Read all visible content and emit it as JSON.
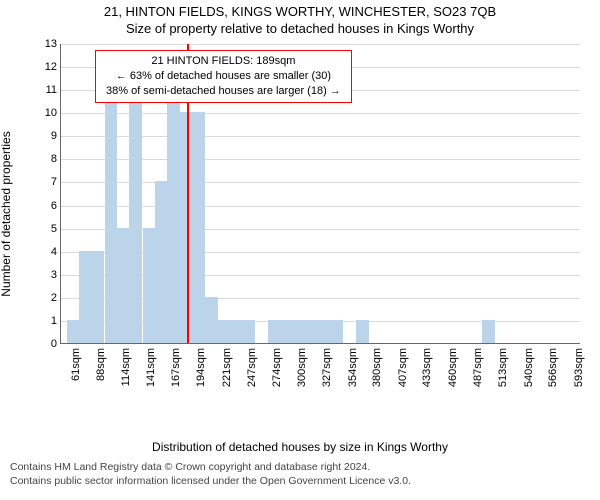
{
  "chart": {
    "type": "histogram",
    "title_line1": "21, HINTON FIELDS, KINGS WORTHY, WINCHESTER, SO23 7QB",
    "title_line2": "Size of property relative to detached houses in Kings Worthy",
    "ylabel": "Number of detached properties",
    "xlabel": "Distribution of detached houses by size in Kings Worthy",
    "ylim": [
      0,
      13
    ],
    "ytick_step": 1,
    "x_min": 55,
    "x_max": 605,
    "x_tick_labels": [
      "61sqm",
      "88sqm",
      "114sqm",
      "141sqm",
      "167sqm",
      "194sqm",
      "221sqm",
      "247sqm",
      "274sqm",
      "300sqm",
      "327sqm",
      "354sqm",
      "380sqm",
      "407sqm",
      "433sqm",
      "460sqm",
      "487sqm",
      "513sqm",
      "540sqm",
      "566sqm",
      "593sqm"
    ],
    "x_tick_values": [
      61,
      88,
      114,
      141,
      167,
      194,
      221,
      247,
      274,
      300,
      327,
      354,
      380,
      407,
      433,
      460,
      487,
      513,
      540,
      566,
      593
    ],
    "bin_width": 13.3,
    "bars": [
      {
        "x": 68,
        "h": 1
      },
      {
        "x": 81,
        "h": 4
      },
      {
        "x": 94,
        "h": 4
      },
      {
        "x": 108,
        "h": 11
      },
      {
        "x": 121,
        "h": 5
      },
      {
        "x": 134,
        "h": 12
      },
      {
        "x": 148,
        "h": 5
      },
      {
        "x": 161,
        "h": 7
      },
      {
        "x": 174,
        "h": 11
      },
      {
        "x": 188,
        "h": 10
      },
      {
        "x": 201,
        "h": 10
      },
      {
        "x": 214,
        "h": 2
      },
      {
        "x": 228,
        "h": 1
      },
      {
        "x": 241,
        "h": 1
      },
      {
        "x": 254,
        "h": 1
      },
      {
        "x": 281,
        "h": 1
      },
      {
        "x": 294,
        "h": 1
      },
      {
        "x": 307,
        "h": 1
      },
      {
        "x": 321,
        "h": 1
      },
      {
        "x": 334,
        "h": 1
      },
      {
        "x": 347,
        "h": 1
      },
      {
        "x": 374,
        "h": 1
      },
      {
        "x": 507,
        "h": 1
      }
    ],
    "highlight_x": 189,
    "annotation": {
      "line1": "21 HINTON FIELDS: 189sqm",
      "line2": "← 63% of detached houses are smaller (30)",
      "line3": "38% of semi-detached houses are larger (18) →"
    },
    "colors": {
      "bar": "#bcd4ea",
      "highlight": "#ff0000",
      "grid": "#d9d9d9",
      "axis": "#666666",
      "bg": "#ffffff"
    }
  },
  "footer": {
    "line1": "Contains HM Land Registry data © Crown copyright and database right 2024.",
    "line2": "Contains public sector information licensed under the Open Government Licence v3.0."
  }
}
